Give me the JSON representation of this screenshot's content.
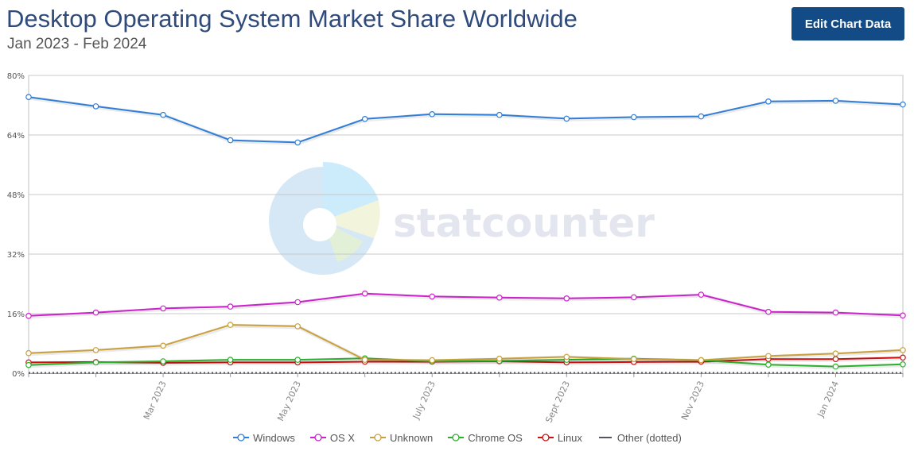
{
  "header": {
    "title": "Desktop Operating System Market Share Worldwide",
    "subtitle": "Jan 2023 - Feb 2024",
    "edit_label": "Edit Chart Data"
  },
  "chart_data": {
    "type": "line",
    "x": [
      "2023-01",
      "2023-02",
      "2023-03",
      "2023-04",
      "2023-05",
      "2023-06",
      "2023-07",
      "2023-08",
      "2023-09",
      "2023-10",
      "2023-11",
      "2023-12",
      "2024-01",
      "2024-02"
    ],
    "x_tick_labels": [
      {
        "index": 2,
        "label": "Mar 2023"
      },
      {
        "index": 4,
        "label": "May 2023"
      },
      {
        "index": 6,
        "label": "July 2023"
      },
      {
        "index": 8,
        "label": "Sept 2023"
      },
      {
        "index": 10,
        "label": "Nov 2023"
      },
      {
        "index": 12,
        "label": "Jan 2024"
      }
    ],
    "ylim": [
      0,
      80
    ],
    "y_ticks": [
      0,
      16,
      32,
      48,
      64,
      80
    ],
    "y_tick_labels": [
      "0%",
      "16%",
      "32%",
      "48%",
      "64%",
      "80%"
    ],
    "grid": true,
    "legend_position": "bottom-center",
    "series": [
      {
        "name": "Windows",
        "color": "#2f7ed8",
        "dotted": false,
        "values": [
          74.2,
          71.7,
          69.4,
          62.6,
          62.0,
          68.3,
          69.6,
          69.4,
          68.4,
          68.8,
          69.0,
          73.0,
          73.2,
          72.2
        ]
      },
      {
        "name": "OS X",
        "color": "#cc22cc",
        "dotted": false,
        "values": [
          15.4,
          16.3,
          17.4,
          17.9,
          19.1,
          21.4,
          20.6,
          20.3,
          20.1,
          20.4,
          21.1,
          16.5,
          16.3,
          15.5
        ]
      },
      {
        "name": "Unknown",
        "color": "#c9a03b",
        "dotted": false,
        "values": [
          5.4,
          6.2,
          7.4,
          13.0,
          12.6,
          3.6,
          3.5,
          3.9,
          4.4,
          3.8,
          3.5,
          4.6,
          5.3,
          6.2
        ]
      },
      {
        "name": "Chrome OS",
        "color": "#2db12d",
        "dotted": false,
        "values": [
          2.2,
          2.9,
          3.2,
          3.6,
          3.6,
          4.0,
          3.2,
          3.3,
          3.6,
          3.9,
          3.5,
          2.3,
          1.8,
          2.4
        ]
      },
      {
        "name": "Linux",
        "color": "#cc1111",
        "dotted": false,
        "values": [
          2.9,
          3.0,
          2.8,
          2.9,
          2.9,
          3.1,
          3.1,
          3.2,
          2.9,
          3.0,
          3.1,
          3.8,
          3.8,
          4.2
        ]
      },
      {
        "name": "Other (dotted)",
        "color": "#555566",
        "dotted": true,
        "values": [
          0.1,
          0.1,
          0.1,
          0.1,
          0.1,
          0.1,
          0.1,
          0.1,
          0.1,
          0.1,
          0.1,
          0.1,
          0.1,
          0.1
        ]
      }
    ]
  },
  "watermark": {
    "text": "statcounter",
    "colors": [
      "#d6e8f6",
      "#ccecfb",
      "#f2f4dc",
      "#e2f0d8"
    ]
  }
}
